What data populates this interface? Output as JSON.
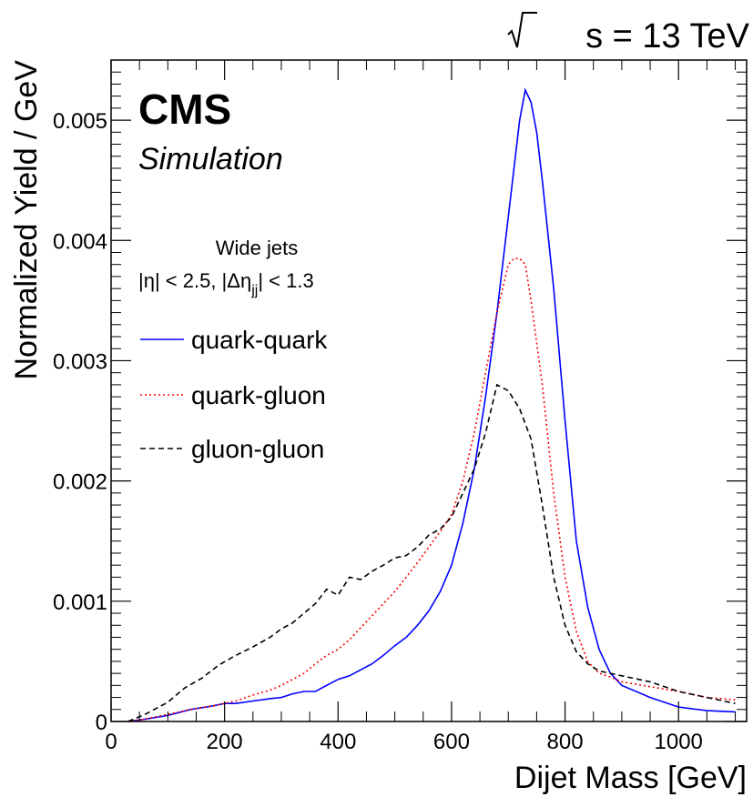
{
  "chart_data": {
    "type": "line",
    "energy_label": "s = 13 TeV",
    "experiment": "CMS",
    "status": "Simulation",
    "selection": {
      "line1": "Wide jets",
      "line2": "|η| < 2.5, |Δη",
      "subscript": "jj",
      "line2_end": "| < 1.3"
    },
    "xlabel": "Dijet Mass [GeV]",
    "ylabel": "Normalized Yield / GeV",
    "xlim": [
      0,
      1120
    ],
    "ylim": [
      0,
      0.0055
    ],
    "xticks": [
      "0",
      "200",
      "400",
      "600",
      "800",
      "1000"
    ],
    "yticks": [
      "0",
      "0.001",
      "0.002",
      "0.003",
      "0.004",
      "0.005"
    ],
    "legend_position": "top-left",
    "series": [
      {
        "name": "quark-quark",
        "color": "#0000ff",
        "style": "solid",
        "x": [
          30,
          60,
          100,
          140,
          180,
          200,
          220,
          250,
          280,
          300,
          320,
          340,
          360,
          380,
          400,
          420,
          440,
          460,
          480,
          500,
          520,
          540,
          560,
          580,
          600,
          620,
          640,
          660,
          680,
          700,
          710,
          720,
          730,
          740,
          750,
          760,
          780,
          800,
          820,
          840,
          860,
          880,
          900,
          950,
          1000,
          1050,
          1100
        ],
        "y": [
          0,
          2e-05,
          5e-05,
          0.0001,
          0.00013,
          0.00015,
          0.00015,
          0.00017,
          0.00019,
          0.0002,
          0.00023,
          0.00025,
          0.00025,
          0.0003,
          0.00035,
          0.00038,
          0.00043,
          0.00048,
          0.00055,
          0.00063,
          0.0007,
          0.0008,
          0.00092,
          0.00108,
          0.0013,
          0.00165,
          0.0021,
          0.0027,
          0.0034,
          0.0042,
          0.0046,
          0.005,
          0.00525,
          0.00515,
          0.0049,
          0.0045,
          0.0036,
          0.0025,
          0.0015,
          0.00095,
          0.0006,
          0.0004,
          0.0003,
          0.0002,
          0.00012,
          9e-05,
          8e-05
        ]
      },
      {
        "name": "quark-gluon",
        "color": "#ff0000",
        "style": "dotted",
        "x": [
          30,
          60,
          100,
          140,
          180,
          200,
          220,
          250,
          280,
          300,
          320,
          340,
          360,
          380,
          400,
          420,
          440,
          460,
          480,
          500,
          520,
          540,
          560,
          580,
          600,
          620,
          640,
          660,
          680,
          700,
          710,
          720,
          730,
          740,
          760,
          780,
          800,
          820,
          840,
          860,
          880,
          900,
          950,
          1000,
          1050,
          1100
        ],
        "y": [
          0,
          2e-05,
          6e-05,
          0.0001,
          0.00013,
          0.00015,
          0.00017,
          0.00022,
          0.00026,
          0.0003,
          0.00035,
          0.0004,
          0.00048,
          0.00055,
          0.0006,
          0.00068,
          0.00078,
          0.00088,
          0.00098,
          0.00108,
          0.0012,
          0.00132,
          0.00145,
          0.00158,
          0.00172,
          0.002,
          0.0024,
          0.0029,
          0.0034,
          0.0038,
          0.00385,
          0.00385,
          0.0038,
          0.0035,
          0.0028,
          0.0019,
          0.0012,
          0.00075,
          0.0005,
          0.0004,
          0.00037,
          0.00033,
          0.00029,
          0.00025,
          0.0002,
          0.00018
        ]
      },
      {
        "name": "gluon-gluon",
        "color": "#000000",
        "style": "dashed",
        "x": [
          30,
          60,
          100,
          130,
          160,
          190,
          220,
          250,
          280,
          300,
          320,
          340,
          360,
          380,
          400,
          420,
          440,
          460,
          480,
          500,
          520,
          540,
          560,
          580,
          600,
          620,
          640,
          660,
          680,
          700,
          720,
          740,
          760,
          780,
          800,
          820,
          840,
          860,
          880,
          900,
          950,
          1000,
          1050,
          1100
        ],
        "y": [
          0,
          6e-05,
          0.00016,
          0.00028,
          0.00036,
          0.00047,
          0.00055,
          0.00062,
          0.0007,
          0.00077,
          0.00082,
          0.0009,
          0.00098,
          0.0011,
          0.00105,
          0.0012,
          0.00118,
          0.00125,
          0.0013,
          0.00136,
          0.00138,
          0.00145,
          0.00155,
          0.0016,
          0.0017,
          0.0019,
          0.0021,
          0.0024,
          0.0028,
          0.00275,
          0.0026,
          0.00235,
          0.0018,
          0.0012,
          0.0008,
          0.00058,
          0.00048,
          0.00042,
          0.0004,
          0.00038,
          0.00033,
          0.00025,
          0.0002,
          0.00015
        ]
      }
    ]
  }
}
